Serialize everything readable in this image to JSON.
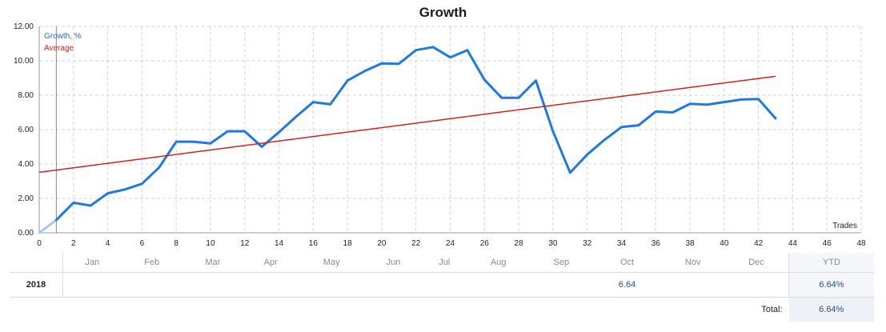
{
  "title": "Growth",
  "legend": {
    "growth": "Growth, %",
    "average": "Average"
  },
  "x_axis_label": "Trades",
  "colors": {
    "growth": "#1f7ae0",
    "average": "#d62020",
    "growth_start": "#a9c8ee",
    "grid": "#d5d5d5"
  },
  "chart_data": {
    "type": "line",
    "title": "Growth",
    "xlabel": "Trades",
    "ylabel": "",
    "xlim": [
      0,
      48
    ],
    "ylim": [
      0,
      12
    ],
    "x_ticks": [
      "0",
      "2",
      "4",
      "6",
      "8",
      "10",
      "12",
      "14",
      "16",
      "18",
      "20",
      "22",
      "24",
      "26",
      "28",
      "30",
      "32",
      "34",
      "36",
      "38",
      "40",
      "42",
      "44",
      "46",
      "48"
    ],
    "y_ticks": [
      "0.00",
      "2.00",
      "4.00",
      "6.00",
      "8.00",
      "10.00",
      "12.00"
    ],
    "grid": true,
    "legend_position": "top-left",
    "series": [
      {
        "name": "Growth, %",
        "x": [
          0,
          1,
          2,
          3,
          4,
          5,
          6,
          7,
          8,
          9,
          10,
          11,
          12,
          13,
          14,
          15,
          16,
          17,
          18,
          19,
          20,
          21,
          22,
          23,
          24,
          25,
          26,
          27,
          28,
          29,
          30,
          31,
          32,
          33,
          34,
          35,
          36,
          37,
          38,
          39,
          40,
          41,
          42,
          43
        ],
        "y": [
          0.0,
          0.75,
          1.75,
          1.58,
          2.3,
          2.52,
          2.85,
          3.8,
          5.3,
          5.3,
          5.2,
          5.9,
          5.9,
          5.0,
          5.85,
          6.75,
          7.6,
          7.47,
          8.85,
          9.4,
          9.85,
          9.83,
          10.62,
          10.8,
          10.2,
          10.62,
          8.9,
          7.85,
          7.85,
          8.85,
          5.9,
          3.5,
          4.55,
          5.4,
          6.15,
          6.25,
          7.05,
          7.0,
          7.5,
          7.45,
          7.6,
          7.75,
          7.78,
          6.65
        ]
      },
      {
        "name": "Average",
        "x": [
          0,
          43
        ],
        "y": [
          3.52,
          9.1
        ]
      }
    ]
  },
  "months": {
    "headers": [
      "Jan",
      "Feb",
      "Mar",
      "Apr",
      "May",
      "Jun",
      "Jul",
      "Aug",
      "Sep",
      "Oct",
      "Nov",
      "Dec"
    ],
    "ytd_header": "YTD",
    "rows": [
      {
        "year": "2018",
        "values": [
          "",
          "",
          "",
          "",
          "",
          "",
          "",
          "",
          "",
          "6.64",
          "",
          ""
        ],
        "ytd": "6.64%"
      }
    ],
    "total_label": "Total:",
    "total_value": "6.64%"
  }
}
